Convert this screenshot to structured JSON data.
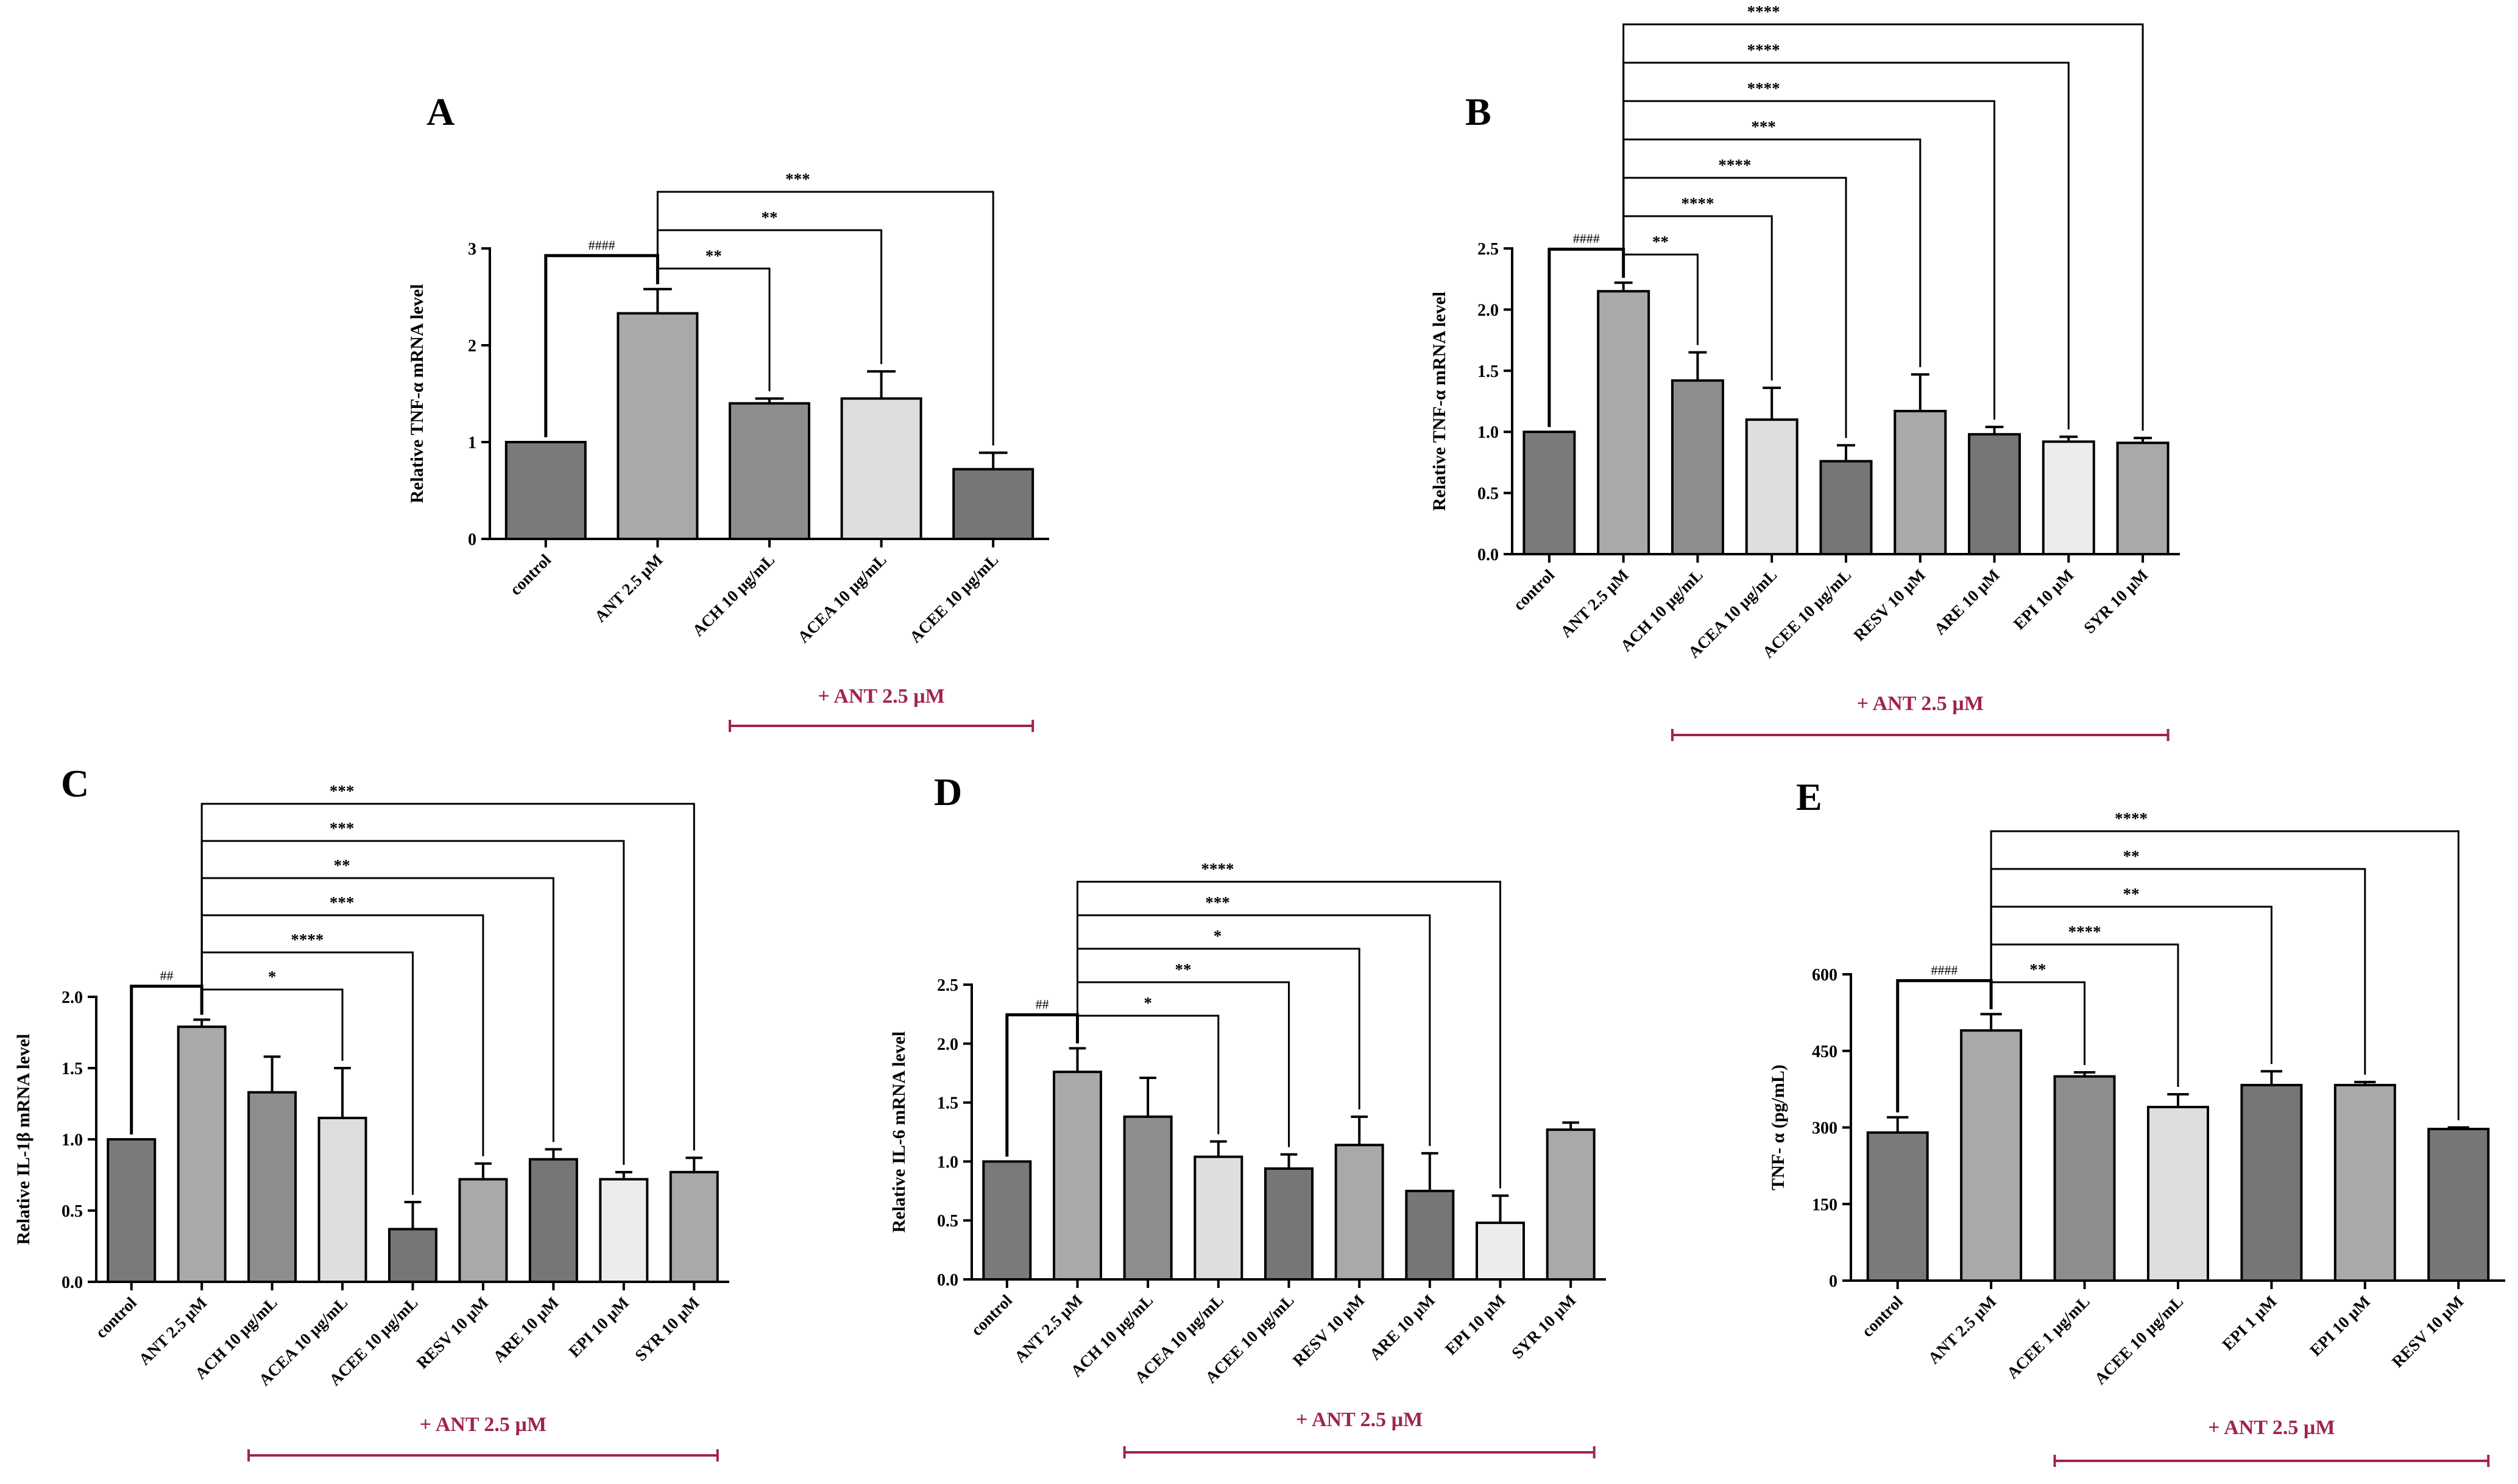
{
  "figure": {
    "group_label": "+ ANT 2.5 µM",
    "group_color": "#a0234f"
  },
  "chart_data": [
    {
      "panel": "A",
      "type": "bar",
      "ylabel": "Relative TNF-α mRNA level",
      "ylim": [
        0,
        3
      ],
      "yticks": [
        "0",
        "1",
        "2",
        "3"
      ],
      "categories": [
        "control",
        "ANT 2.5 µM",
        "ACH 10 µg/mL",
        "ACEA 10 µg/mL",
        "ACEE 10 µg/mL"
      ],
      "values": [
        1.0,
        2.33,
        1.4,
        1.45,
        0.72
      ],
      "errors": [
        0,
        0.25,
        0.05,
        0.28,
        0.17
      ],
      "colors": [
        "#7a7a7a",
        "#a9a9a9",
        "#8d8d8d",
        "#dedede",
        "#767676"
      ],
      "group_range": [
        2,
        4
      ],
      "comparisons": [
        {
          "from": 0,
          "to": 1,
          "label": "####",
          "kind": "hash"
        },
        {
          "from": 1,
          "to": 2,
          "label": "**",
          "kind": "sig"
        },
        {
          "from": 1,
          "to": 3,
          "label": "**",
          "kind": "sig"
        },
        {
          "from": 1,
          "to": 4,
          "label": "***",
          "kind": "sig"
        }
      ]
    },
    {
      "panel": "B",
      "type": "bar",
      "ylabel": "Relative TNF-α mRNA level",
      "ylim": [
        0,
        2.5
      ],
      "yticks": [
        "0.0",
        "0.5",
        "1.0",
        "1.5",
        "2.0",
        "2.5"
      ],
      "categories": [
        "control",
        "ANT 2.5 µM",
        "ACH 10 µg/mL",
        "ACEA 10 µg/mL",
        "ACEE 10 µg/mL",
        "RESV 10 µM",
        "ARE 10 µM",
        "EPI 10 µM",
        "SYR 10 µM"
      ],
      "values": [
        1.0,
        2.15,
        1.42,
        1.1,
        0.76,
        1.17,
        0.98,
        0.92,
        0.91
      ],
      "errors": [
        0,
        0.07,
        0.23,
        0.26,
        0.13,
        0.3,
        0.06,
        0.04,
        0.04
      ],
      "colors": [
        "#7a7a7a",
        "#a9a9a9",
        "#8d8d8d",
        "#dedede",
        "#767676",
        "#a9a9a9",
        "#767676",
        "#ececec",
        "#a9a9a9"
      ],
      "group_range": [
        2,
        8
      ],
      "comparisons": [
        {
          "from": 0,
          "to": 1,
          "label": "####",
          "kind": "hash"
        },
        {
          "from": 1,
          "to": 2,
          "label": "**",
          "kind": "sig"
        },
        {
          "from": 1,
          "to": 3,
          "label": "****",
          "kind": "sig"
        },
        {
          "from": 1,
          "to": 4,
          "label": "****",
          "kind": "sig"
        },
        {
          "from": 1,
          "to": 5,
          "label": "***",
          "kind": "sig"
        },
        {
          "from": 1,
          "to": 6,
          "label": "****",
          "kind": "sig"
        },
        {
          "from": 1,
          "to": 7,
          "label": "****",
          "kind": "sig"
        },
        {
          "from": 1,
          "to": 8,
          "label": "****",
          "kind": "sig"
        }
      ]
    },
    {
      "panel": "C",
      "type": "bar",
      "ylabel": "Relative IL-1β mRNA level",
      "ylim": [
        0,
        2.0
      ],
      "yticks": [
        "0.0",
        "0.5",
        "1.0",
        "1.5",
        "2.0"
      ],
      "categories": [
        "control",
        "ANT 2.5 µM",
        "ACH 10 µg/mL",
        "ACEA 10 µg/mL",
        "ACEE 10 µg/mL",
        "RESV 10 µM",
        "ARE 10 µM",
        "EPI 10 µM",
        "SYR 10 µM"
      ],
      "values": [
        1.0,
        1.79,
        1.33,
        1.15,
        0.37,
        0.72,
        0.86,
        0.72,
        0.77
      ],
      "errors": [
        0,
        0.05,
        0.25,
        0.35,
        0.19,
        0.11,
        0.07,
        0.05,
        0.1
      ],
      "colors": [
        "#7a7a7a",
        "#a9a9a9",
        "#8d8d8d",
        "#dedede",
        "#767676",
        "#a9a9a9",
        "#767676",
        "#ececec",
        "#a9a9a9"
      ],
      "group_range": [
        2,
        8
      ],
      "comparisons": [
        {
          "from": 0,
          "to": 1,
          "label": "##",
          "kind": "hash"
        },
        {
          "from": 1,
          "to": 3,
          "label": "*",
          "kind": "sig"
        },
        {
          "from": 1,
          "to": 4,
          "label": "****",
          "kind": "sig"
        },
        {
          "from": 1,
          "to": 5,
          "label": "***",
          "kind": "sig"
        },
        {
          "from": 1,
          "to": 6,
          "label": "**",
          "kind": "sig"
        },
        {
          "from": 1,
          "to": 7,
          "label": "***",
          "kind": "sig"
        },
        {
          "from": 1,
          "to": 8,
          "label": "***",
          "kind": "sig"
        }
      ]
    },
    {
      "panel": "D",
      "type": "bar",
      "ylabel": "Relative IL-6 mRNA level",
      "ylim": [
        0,
        2.5
      ],
      "yticks": [
        "0.0",
        "0.5",
        "1.0",
        "1.5",
        "2.0",
        "2.5"
      ],
      "categories": [
        "control",
        "ANT 2.5 µM",
        "ACH 10 µg/mL",
        "ACEA 10 µg/mL",
        "ACEE 10 µg/mL",
        "RESV 10 µM",
        "ARE 10 µM",
        "EPI 10 µM",
        "SYR 10 µM"
      ],
      "values": [
        1.0,
        1.76,
        1.38,
        1.04,
        0.94,
        1.14,
        0.75,
        0.48,
        1.27
      ],
      "errors": [
        0,
        0.2,
        0.33,
        0.13,
        0.12,
        0.24,
        0.32,
        0.23,
        0.06
      ],
      "colors": [
        "#7a7a7a",
        "#a9a9a9",
        "#8d8d8d",
        "#dedede",
        "#767676",
        "#a9a9a9",
        "#767676",
        "#ececec",
        "#a9a9a9"
      ],
      "group_range": [
        2,
        8
      ],
      "comparisons": [
        {
          "from": 0,
          "to": 1,
          "label": "##",
          "kind": "hash"
        },
        {
          "from": 1,
          "to": 3,
          "label": "*",
          "kind": "sig"
        },
        {
          "from": 1,
          "to": 4,
          "label": "**",
          "kind": "sig"
        },
        {
          "from": 1,
          "to": 5,
          "label": "*",
          "kind": "sig"
        },
        {
          "from": 1,
          "to": 6,
          "label": "***",
          "kind": "sig"
        },
        {
          "from": 1,
          "to": 7,
          "label": "****",
          "kind": "sig"
        }
      ]
    },
    {
      "panel": "E",
      "type": "bar",
      "ylabel": "TNF- α (pg/mL)",
      "ylim": [
        0,
        600
      ],
      "yticks": [
        "0",
        "150",
        "300",
        "450",
        "600"
      ],
      "categories": [
        "control",
        "ANT 2.5 µM",
        "ACEE 1 µg/mL",
        "ACEE 10 µg/mL",
        "EPI 1 µM",
        "EPI 10 µM",
        "RESV 10 µM"
      ],
      "values": [
        290,
        490,
        400,
        340,
        383,
        383,
        297
      ],
      "errors": [
        30,
        32,
        8,
        25,
        27,
        6,
        3
      ],
      "colors": [
        "#7a7a7a",
        "#a9a9a9",
        "#8d8d8d",
        "#dedede",
        "#767676",
        "#a9a9a9",
        "#767676"
      ],
      "group_range": [
        2,
        6
      ],
      "comparisons": [
        {
          "from": 0,
          "to": 1,
          "label": "####",
          "kind": "hash"
        },
        {
          "from": 1,
          "to": 2,
          "label": "**",
          "kind": "sig"
        },
        {
          "from": 1,
          "to": 3,
          "label": "****",
          "kind": "sig"
        },
        {
          "from": 1,
          "to": 4,
          "label": "**",
          "kind": "sig"
        },
        {
          "from": 1,
          "to": 5,
          "label": "**",
          "kind": "sig"
        },
        {
          "from": 1,
          "to": 6,
          "label": "****",
          "kind": "sig"
        }
      ]
    }
  ]
}
